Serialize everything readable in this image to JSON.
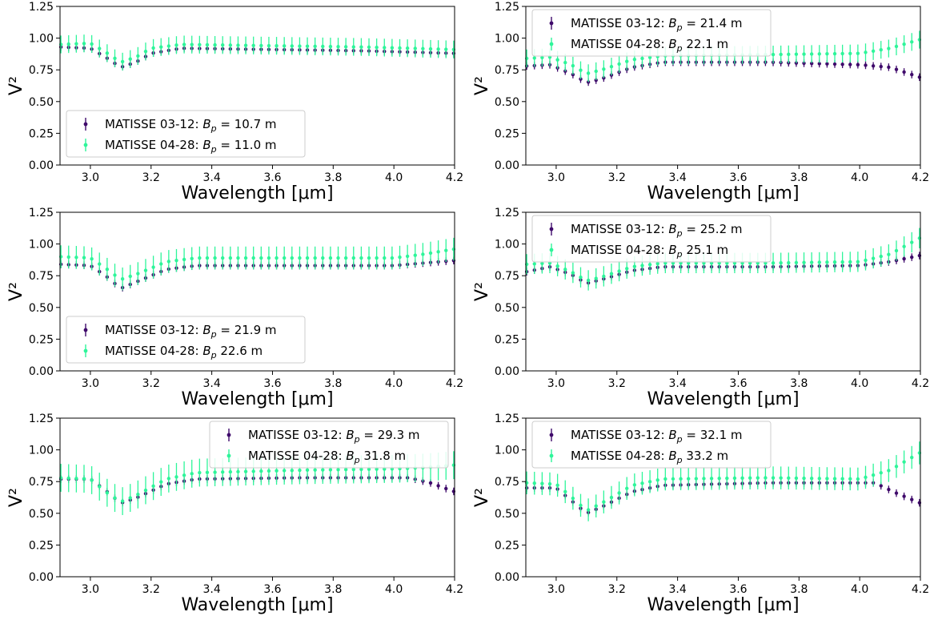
{
  "figure": {
    "colors": {
      "series_a": "#3f0a6b",
      "series_b": "#2ef59a",
      "axis": "#000000",
      "legend_border": "#cccccc"
    }
  },
  "chart_data": [
    {
      "type": "scatter",
      "panel": "top-left",
      "xlabel": "Wavelength [μm]",
      "ylabel": "V²",
      "xlim": [
        2.9,
        4.2
      ],
      "ylim": [
        0.0,
        1.25
      ],
      "xticks": [
        "3.0",
        "3.2",
        "3.4",
        "3.6",
        "3.8",
        "4.0",
        "4.2"
      ],
      "yticks": [
        "0.00",
        "0.25",
        "0.50",
        "0.75",
        "1.00",
        "1.25"
      ],
      "legend_position": "lower-left",
      "series": [
        {
          "name": "MATISSE 03-12: Bp = 10.7 m",
          "label_prefix": "MATISSE 03-12: ",
          "label_suffix": " = 10.7 m",
          "points": [
            [
              2.9,
              0.93
            ],
            [
              3.0,
              0.92
            ],
            [
              3.05,
              0.85
            ],
            [
              3.1,
              0.77
            ],
            [
              3.15,
              0.81
            ],
            [
              3.2,
              0.88
            ],
            [
              3.3,
              0.92
            ],
            [
              3.6,
              0.91
            ],
            [
              3.9,
              0.9
            ],
            [
              4.2,
              0.88
            ]
          ],
          "err": 0.03
        },
        {
          "name": "MATISSE 04-28: Bp = 11.0 m",
          "label_prefix": "MATISSE 04-28: ",
          "label_suffix": " = 11.0 m",
          "points": [
            [
              2.9,
              0.95
            ],
            [
              3.0,
              0.96
            ],
            [
              3.05,
              0.89
            ],
            [
              3.1,
              0.81
            ],
            [
              3.15,
              0.85
            ],
            [
              3.2,
              0.92
            ],
            [
              3.3,
              0.95
            ],
            [
              3.6,
              0.94
            ],
            [
              3.9,
              0.93
            ],
            [
              4.2,
              0.91
            ]
          ],
          "err": 0.07
        }
      ]
    },
    {
      "type": "scatter",
      "panel": "top-right",
      "xlabel": "Wavelength [μm]",
      "ylabel": "V²",
      "xlim": [
        2.9,
        4.2
      ],
      "ylim": [
        0.0,
        1.25
      ],
      "xticks": [
        "3.0",
        "3.2",
        "3.4",
        "3.6",
        "3.8",
        "4.0",
        "4.2"
      ],
      "yticks": [
        "0.00",
        "0.25",
        "0.50",
        "0.75",
        "1.00",
        "1.25"
      ],
      "legend_position": "upper-left",
      "series": [
        {
          "name": "MATISSE 03-12: Bp = 21.4 m",
          "label_prefix": "MATISSE 03-12: ",
          "label_suffix": " = 21.4 m",
          "points": [
            [
              2.9,
              0.78
            ],
            [
              2.98,
              0.79
            ],
            [
              3.05,
              0.72
            ],
            [
              3.1,
              0.65
            ],
            [
              3.15,
              0.68
            ],
            [
              3.25,
              0.77
            ],
            [
              3.35,
              0.81
            ],
            [
              3.7,
              0.81
            ],
            [
              4.0,
              0.79
            ],
            [
              4.1,
              0.77
            ],
            [
              4.2,
              0.69
            ]
          ],
          "err": 0.03
        },
        {
          "name": "MATISSE 04-28: Bp = 22.1 m",
          "label_prefix": "MATISSE 04-28: ",
          "label_suffix": "  22.1 m",
          "points": [
            [
              2.9,
              0.84
            ],
            [
              2.98,
              0.85
            ],
            [
              3.05,
              0.79
            ],
            [
              3.1,
              0.72
            ],
            [
              3.15,
              0.75
            ],
            [
              3.25,
              0.83
            ],
            [
              3.35,
              0.86
            ],
            [
              3.7,
              0.87
            ],
            [
              4.0,
              0.88
            ],
            [
              4.1,
              0.92
            ],
            [
              4.2,
              0.99
            ]
          ],
          "err": 0.07
        }
      ]
    },
    {
      "type": "scatter",
      "panel": "middle-left",
      "xlabel": "Wavelength [μm]",
      "ylabel": "V²",
      "xlim": [
        2.9,
        4.2
      ],
      "ylim": [
        0.0,
        1.25
      ],
      "xticks": [
        "3.0",
        "3.2",
        "3.4",
        "3.6",
        "3.8",
        "4.0",
        "4.2"
      ],
      "yticks": [
        "0.00",
        "0.25",
        "0.50",
        "0.75",
        "1.00",
        "1.25"
      ],
      "legend_position": "lower-left",
      "series": [
        {
          "name": "MATISSE 03-12: Bp = 21.9 m",
          "label_prefix": "MATISSE 03-12: ",
          "label_suffix": " = 21.9 m",
          "points": [
            [
              2.9,
              0.84
            ],
            [
              3.0,
              0.83
            ],
            [
              3.05,
              0.75
            ],
            [
              3.1,
              0.65
            ],
            [
              3.15,
              0.7
            ],
            [
              3.25,
              0.8
            ],
            [
              3.35,
              0.83
            ],
            [
              3.7,
              0.83
            ],
            [
              4.0,
              0.83
            ],
            [
              4.1,
              0.85
            ],
            [
              4.2,
              0.87
            ]
          ],
          "err": 0.03
        },
        {
          "name": "MATISSE 04-28: Bp = 22.6 m",
          "label_prefix": "MATISSE 04-28: ",
          "label_suffix": "  22.6 m",
          "points": [
            [
              2.9,
              0.9
            ],
            [
              3.0,
              0.89
            ],
            [
              3.05,
              0.81
            ],
            [
              3.1,
              0.72
            ],
            [
              3.15,
              0.76
            ],
            [
              3.25,
              0.86
            ],
            [
              3.35,
              0.89
            ],
            [
              3.7,
              0.89
            ],
            [
              4.0,
              0.89
            ],
            [
              4.1,
              0.92
            ],
            [
              4.2,
              0.96
            ]
          ],
          "err": 0.09
        }
      ]
    },
    {
      "type": "scatter",
      "panel": "middle-right",
      "xlabel": "Wavelength [μm]",
      "ylabel": "V²",
      "xlim": [
        2.9,
        4.2
      ],
      "ylim": [
        0.0,
        1.25
      ],
      "xticks": [
        "3.0",
        "3.2",
        "3.4",
        "3.6",
        "3.8",
        "4.0",
        "4.2"
      ],
      "yticks": [
        "0.00",
        "0.25",
        "0.50",
        "0.75",
        "1.00",
        "1.25"
      ],
      "legend_position": "upper-left",
      "series": [
        {
          "name": "MATISSE 03-12: Bp = 25.2 m",
          "label_prefix": "MATISSE 03-12: ",
          "label_suffix": " = 25.2 m",
          "points": [
            [
              2.9,
              0.78
            ],
            [
              2.98,
              0.82
            ],
            [
              3.05,
              0.76
            ],
            [
              3.1,
              0.69
            ],
            [
              3.15,
              0.72
            ],
            [
              3.25,
              0.79
            ],
            [
              3.35,
              0.82
            ],
            [
              3.7,
              0.82
            ],
            [
              4.0,
              0.83
            ],
            [
              4.1,
              0.86
            ],
            [
              4.2,
              0.91
            ]
          ],
          "err": 0.03
        },
        {
          "name": "MATISSE 04-28: Bp = 25.1 m",
          "label_prefix": "MATISSE 04-28: ",
          "label_suffix": "  25.1 m",
          "points": [
            [
              2.9,
              0.84
            ],
            [
              2.98,
              0.85
            ],
            [
              3.05,
              0.78
            ],
            [
              3.1,
              0.71
            ],
            [
              3.15,
              0.74
            ],
            [
              3.25,
              0.82
            ],
            [
              3.35,
              0.85
            ],
            [
              3.7,
              0.85
            ],
            [
              4.0,
              0.86
            ],
            [
              4.1,
              0.92
            ],
            [
              4.2,
              1.05
            ]
          ],
          "err": 0.08
        }
      ]
    },
    {
      "type": "scatter",
      "panel": "bottom-left",
      "xlabel": "Wavelength [μm]",
      "ylabel": "V²",
      "xlim": [
        2.9,
        4.2
      ],
      "ylim": [
        0.0,
        1.25
      ],
      "xticks": [
        "3.0",
        "3.2",
        "3.4",
        "3.6",
        "3.8",
        "4.0",
        "4.2"
      ],
      "yticks": [
        "0.00",
        "0.25",
        "0.50",
        "0.75",
        "1.00",
        "1.25"
      ],
      "legend_position": "upper-right",
      "series": [
        {
          "name": "MATISSE 03-12: Bp = 29.3 m",
          "label_prefix": "MATISSE 03-12: ",
          "label_suffix": " = 29.3 m",
          "points": [
            [
              2.9,
              0.77
            ],
            [
              3.0,
              0.77
            ],
            [
              3.05,
              0.68
            ],
            [
              3.1,
              0.58
            ],
            [
              3.15,
              0.62
            ],
            [
              3.25,
              0.73
            ],
            [
              3.35,
              0.77
            ],
            [
              3.7,
              0.78
            ],
            [
              4.05,
              0.78
            ],
            [
              4.12,
              0.74
            ],
            [
              4.2,
              0.67
            ]
          ],
          "err": 0.03
        },
        {
          "name": "MATISSE 04-28: Bp = 31.8 m",
          "label_prefix": "MATISSE 04-28: ",
          "label_suffix": "  31.8 m",
          "points": [
            [
              2.9,
              0.78
            ],
            [
              3.0,
              0.77
            ],
            [
              3.05,
              0.67
            ],
            [
              3.1,
              0.59
            ],
            [
              3.15,
              0.64
            ],
            [
              3.25,
              0.77
            ],
            [
              3.35,
              0.82
            ],
            [
              3.7,
              0.84
            ],
            [
              4.0,
              0.85
            ],
            [
              4.1,
              0.86
            ],
            [
              4.2,
              0.88
            ]
          ],
          "err": 0.11
        }
      ]
    },
    {
      "type": "scatter",
      "panel": "bottom-right",
      "xlabel": "Wavelength [μm]",
      "ylabel": "V²",
      "xlim": [
        2.9,
        4.2
      ],
      "ylim": [
        0.0,
        1.25
      ],
      "xticks": [
        "3.0",
        "3.2",
        "3.4",
        "3.6",
        "3.8",
        "4.0",
        "4.2"
      ],
      "yticks": [
        "0.00",
        "0.25",
        "0.50",
        "0.75",
        "1.00",
        "1.25"
      ],
      "legend_position": "upper-left",
      "series": [
        {
          "name": "MATISSE 03-12: Bp = 32.1 m",
          "label_prefix": "MATISSE 03-12: ",
          "label_suffix": " = 32.1 m",
          "points": [
            [
              2.9,
              0.7
            ],
            [
              3.0,
              0.7
            ],
            [
              3.05,
              0.6
            ],
            [
              3.1,
              0.5
            ],
            [
              3.15,
              0.55
            ],
            [
              3.25,
              0.67
            ],
            [
              3.35,
              0.72
            ],
            [
              3.7,
              0.74
            ],
            [
              4.05,
              0.74
            ],
            [
              4.12,
              0.66
            ],
            [
              4.2,
              0.58
            ]
          ],
          "err": 0.03
        },
        {
          "name": "MATISSE 04-28: Bp = 33.2 m",
          "label_prefix": "MATISSE 04-28: ",
          "label_suffix": "  33.2 m",
          "points": [
            [
              2.9,
              0.74
            ],
            [
              3.0,
              0.73
            ],
            [
              3.05,
              0.63
            ],
            [
              3.1,
              0.52
            ],
            [
              3.15,
              0.58
            ],
            [
              3.25,
              0.72
            ],
            [
              3.35,
              0.77
            ],
            [
              3.7,
              0.78
            ],
            [
              4.0,
              0.77
            ],
            [
              4.1,
              0.84
            ],
            [
              4.2,
              0.98
            ]
          ],
          "err": 0.09
        }
      ]
    }
  ]
}
